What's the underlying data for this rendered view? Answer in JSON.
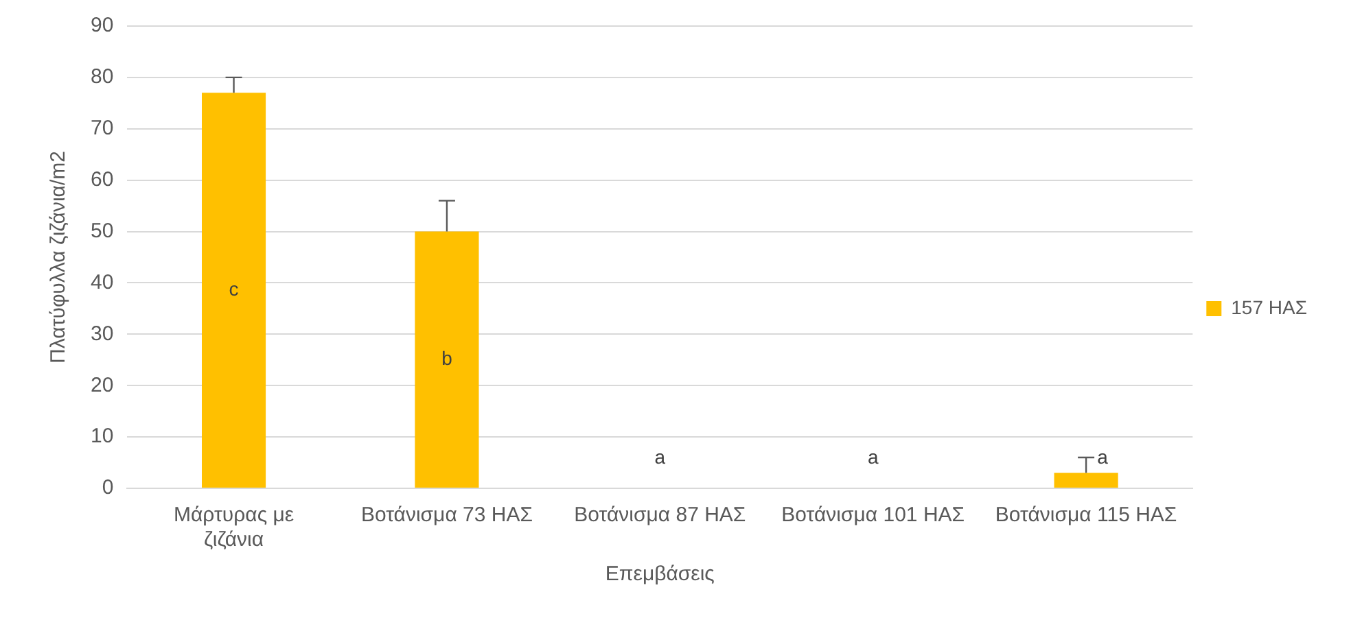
{
  "chart_data": {
    "type": "bar",
    "xlabel": "Επεμβάσεις",
    "ylabel": "Πλατύφυλλα ζιζάνια/m2",
    "categories": [
      "Μάρτυρας με ζιζάνια",
      "Βοτάνισμα 73 ΗΑΣ",
      "Βοτάνισμα 87 ΗΑΣ",
      "Βοτάνισμα 101 ΗΑΣ",
      "Βοτάνισμα 115 ΗΑΣ"
    ],
    "series": [
      {
        "name": "157 ΗΑΣ",
        "color": "#ffc000",
        "values": [
          77,
          50,
          0,
          0,
          3
        ],
        "errors": [
          [
            77,
            80
          ],
          [
            50,
            56
          ],
          null,
          null,
          [
            3,
            6
          ]
        ]
      }
    ],
    "ylim": [
      0,
      90
    ],
    "yticks": [
      0,
      10,
      20,
      30,
      40,
      50,
      60,
      70,
      80,
      90
    ],
    "grid": "y",
    "legend": "right",
    "annotations": [
      "c",
      "b",
      "a",
      "a",
      "a"
    ]
  }
}
